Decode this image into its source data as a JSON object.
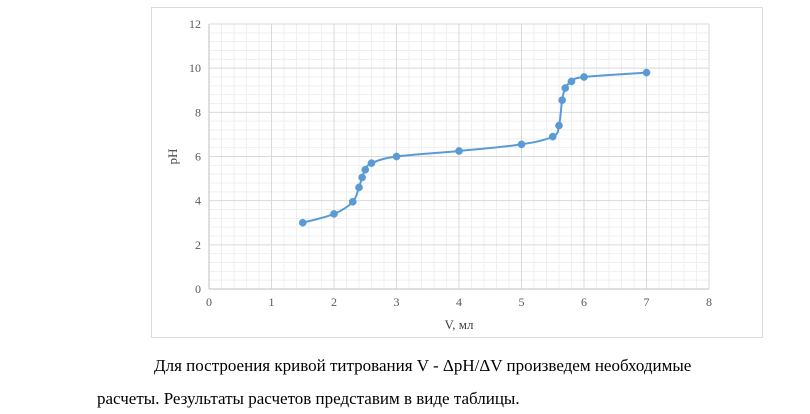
{
  "chart_data": {
    "type": "scatter",
    "title": "",
    "xlabel": "V, мл",
    "ylabel": "pH",
    "xlim": [
      0,
      8
    ],
    "ylim": [
      0,
      12
    ],
    "x_ticks": [
      0,
      1,
      2,
      3,
      4,
      5,
      6,
      7,
      8
    ],
    "y_ticks": [
      0,
      2,
      4,
      6,
      8,
      10,
      12
    ],
    "grid": true,
    "minor_grid": true,
    "line": "smooth",
    "markers": true,
    "series": [
      {
        "x": [
          1.5,
          2.0,
          2.3,
          2.4,
          2.45,
          2.5,
          2.6,
          3.0,
          4.0,
          5.0,
          5.5,
          5.6,
          5.65,
          5.7,
          5.8,
          6.0,
          7.0
        ],
        "y": [
          3.0,
          3.4,
          3.95,
          4.6,
          5.05,
          5.4,
          5.7,
          6.0,
          6.25,
          6.55,
          6.9,
          7.4,
          8.55,
          9.1,
          9.4,
          9.6,
          9.8
        ]
      }
    ],
    "colors": {
      "series": "#5b9bd5",
      "grid": "#d9d9d9",
      "minor_grid": "#efefef",
      "axis": "#bfbfbf",
      "frame": "#d9d9d9"
    }
  },
  "text": {
    "line1": "Для построения кривой титрования V - ΔpH/ΔV произведем необходимые",
    "line2": "расчеты. Результаты расчетов представим в виде таблицы."
  }
}
